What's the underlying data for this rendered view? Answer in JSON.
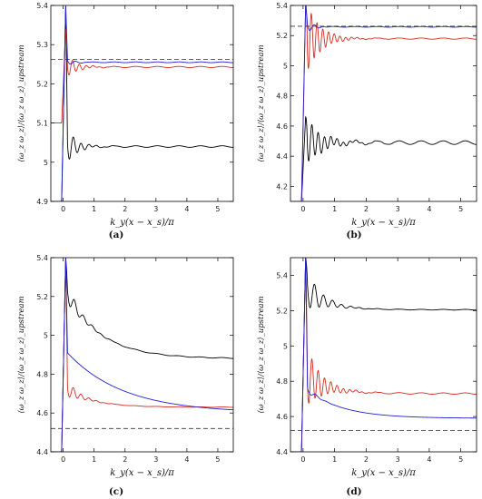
{
  "chart_data": [
    {
      "panel": "(a)",
      "type": "line",
      "xlabel": "k_y(x − x_s)/π",
      "ylabel": "⟨ω_z ω_z⟩/⟨ω_z ω_z⟩_upstream",
      "xlim": [
        -0.4,
        5.5
      ],
      "ylim": [
        4.9,
        5.4
      ],
      "xticks": [
        "0",
        "1",
        "2",
        "3",
        "4",
        "5"
      ],
      "yticks": [
        "4.9",
        "5",
        "5.1",
        "5.2",
        "5.3",
        "5.4"
      ],
      "reference_line": 5.262,
      "series": [
        {
          "color": "#000000",
          "final": 5.04,
          "peak": 5.4,
          "min": 4.9,
          "amp": 0.05,
          "freq": 16,
          "decay": 3.2,
          "ripple": 0.002
        },
        {
          "color": "#d62a1e",
          "final": 5.243,
          "peak": 5.34,
          "min": 5.1,
          "amp": 0.03,
          "freq": 18,
          "decay": 3.0,
          "ripple": 0.0015
        },
        {
          "color": "#1f1fd6",
          "final": 5.255,
          "peak": 5.4,
          "min": 4.9,
          "amp": 0.012,
          "freq": 12,
          "decay": 5.0,
          "ripple": 0.001
        }
      ],
      "caption": "(a)"
    },
    {
      "panel": "(b)",
      "type": "line",
      "xlabel": "k_y(x − x_s)/π",
      "ylabel": "⟨ω_z ω_z⟩/⟨ω_z ω_z⟩_upstream",
      "xlim": [
        -0.4,
        5.5
      ],
      "ylim": [
        4.1,
        5.4
      ],
      "xticks": [
        "0",
        "1",
        "2",
        "3",
        "4",
        "5"
      ],
      "yticks": [
        "4.2",
        "4.4",
        "4.6",
        "4.8",
        "5",
        "5.2",
        "5.4"
      ],
      "reference_line": 5.262,
      "series": [
        {
          "color": "#000000",
          "final": 4.49,
          "peak": 4.66,
          "min": 4.1,
          "amp": 0.16,
          "freq": 20,
          "decay": 2.0,
          "ripple": 0.012
        },
        {
          "color": "#d62a1e",
          "final": 5.18,
          "peak": 5.4,
          "min": 4.1,
          "amp": 0.25,
          "freq": 22,
          "decay": 2.4,
          "ripple": 0.004
        },
        {
          "color": "#1f1fd6",
          "final": 5.258,
          "peak": 5.4,
          "min": 4.1,
          "amp": 0.05,
          "freq": 14,
          "decay": 5.0,
          "ripple": 0.002
        }
      ],
      "caption": "(b)"
    },
    {
      "panel": "(c)",
      "type": "line",
      "xlabel": "k_y(x − x_s)/π",
      "ylabel": "⟨ω_z ω_z⟩/⟨ω_z ω_z⟩_upstream",
      "xlim": [
        -0.4,
        5.5
      ],
      "ylim": [
        4.4,
        5.4
      ],
      "xticks": [
        "0",
        "1",
        "2",
        "3",
        "4",
        "5"
      ],
      "yticks": [
        "4.4",
        "4.6",
        "4.8",
        "5",
        "5.2",
        "5.4"
      ],
      "reference_line": 4.52,
      "series": [
        {
          "color": "#000000",
          "final": 4.88,
          "peak": 5.4,
          "min": 4.4,
          "amp": 0.06,
          "freq": 14,
          "decay": 2.5,
          "ripple": 0.002,
          "relax": 0.35,
          "relax_rate": 0.9
        },
        {
          "color": "#d62a1e",
          "final": 4.63,
          "peak": 5.4,
          "min": 4.4,
          "amp": 0.05,
          "freq": 16,
          "decay": 2.8,
          "ripple": 0.001,
          "relax": 0.1,
          "relax_rate": 1.2
        },
        {
          "color": "#1f1fd6",
          "final": 4.6,
          "peak": 5.4,
          "min": 4.4,
          "amp": 0.0,
          "freq": 10,
          "decay": 5.0,
          "ripple": 0.0,
          "relax": 0.32,
          "relax_rate": 0.55
        }
      ],
      "caption": "(c)"
    },
    {
      "panel": "(d)",
      "type": "line",
      "xlabel": "k_y(x − x_s)/π",
      "ylabel": "⟨ω_z ω_z⟩/⟨ω_z ω_z⟩_upstream",
      "xlim": [
        -0.4,
        5.5
      ],
      "ylim": [
        4.4,
        5.5
      ],
      "xticks": [
        "0",
        "1",
        "2",
        "3",
        "4",
        "5"
      ],
      "yticks": [
        "4.4",
        "4.6",
        "4.8",
        "5",
        "5.2",
        "5.4"
      ],
      "reference_line": 4.52,
      "series": [
        {
          "color": "#000000",
          "final": 5.205,
          "peak": 5.5,
          "min": 4.4,
          "amp": 0.12,
          "freq": 14,
          "decay": 2.2,
          "ripple": 0.002,
          "relax": 0.12,
          "relax_rate": 1.5
        },
        {
          "color": "#d62a1e",
          "final": 4.73,
          "peak": 5.5,
          "min": 4.4,
          "amp": 0.18,
          "freq": 20,
          "decay": 2.2,
          "ripple": 0.004,
          "relax": 0.1,
          "relax_rate": 1.4
        },
        {
          "color": "#1f1fd6",
          "final": 4.59,
          "peak": 5.5,
          "min": 4.4,
          "amp": 0.03,
          "freq": 12,
          "decay": 4.5,
          "ripple": 0.0,
          "relax": 0.17,
          "relax_rate": 0.9
        }
      ],
      "caption": "(d)"
    }
  ]
}
